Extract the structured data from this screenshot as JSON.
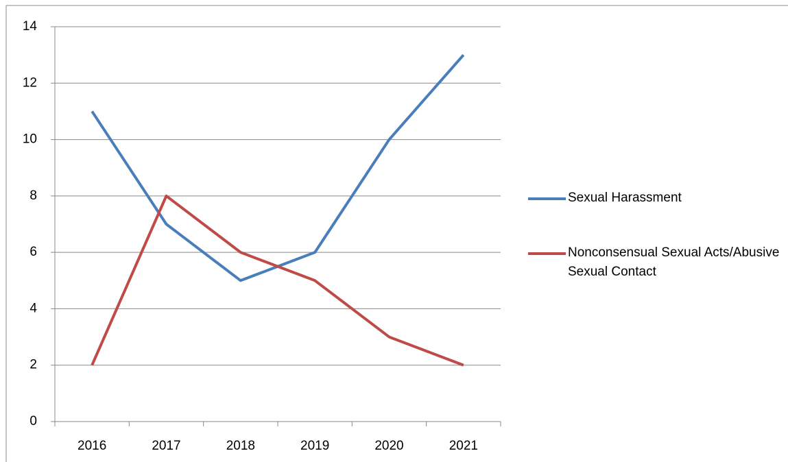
{
  "chart_data": {
    "type": "line",
    "categories": [
      "2016",
      "2017",
      "2018",
      "2019",
      "2020",
      "2021"
    ],
    "series": [
      {
        "name": "Sexual Harassment",
        "color": "#4a7ebb",
        "values": [
          11,
          7,
          5,
          6,
          10,
          13
        ]
      },
      {
        "name": "Nonconsensual Sexual Acts/Abusive Sexual Contact",
        "color": "#be4b48",
        "values": [
          2,
          8,
          6,
          5,
          3,
          2
        ]
      }
    ],
    "ylim": [
      0,
      14
    ],
    "yticks": [
      0,
      2,
      4,
      6,
      8,
      10,
      12,
      14
    ],
    "grid": true,
    "legend": "right"
  }
}
